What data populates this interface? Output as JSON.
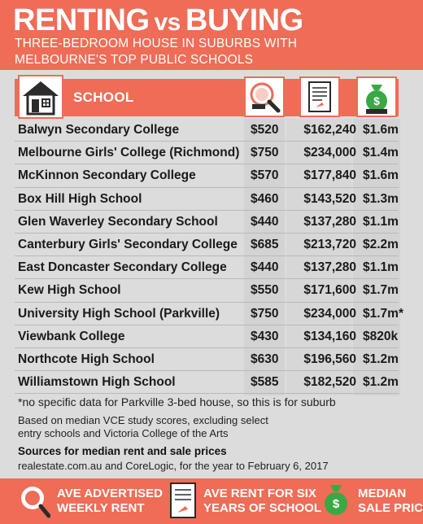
{
  "header": {
    "title_main": "RENTING",
    "title_vs": "vs",
    "title_end": "BUYING",
    "subtitle_line1": "THREE-BEDROOM HOUSE IN SUBURBS WITH",
    "subtitle_line2": "MELBOURNE'S TOP PUBLIC SCHOOLS"
  },
  "table": {
    "school_header": "SCHOOL",
    "header_icons": [
      "house-icon",
      "weekly-rent-icon",
      "document-icon",
      "money-bag-icon"
    ],
    "rows": [
      {
        "school": "Balwyn Secondary College",
        "rent": "$520",
        "total": "$162,240",
        "price": "$1.6m"
      },
      {
        "school": "Melbourne Girls' College (Richmond)",
        "rent": "$750",
        "total": "$234,000",
        "price": "$1.4m"
      },
      {
        "school": "McKinnon Secondary College",
        "rent": "$570",
        "total": "$177,840",
        "price": "$1.6m"
      },
      {
        "school": "Box Hill High School",
        "rent": "$460",
        "total": "$143,520",
        "price": "$1.3m"
      },
      {
        "school": "Glen Waverley Secondary School",
        "rent": "$440",
        "total": "$137,280",
        "price": "$1.1m"
      },
      {
        "school": "Canterbury Girls' Secondary College",
        "rent": "$685",
        "total": "$213,720",
        "price": "$2.2m"
      },
      {
        "school": "East Doncaster Secondary College",
        "rent": "$440",
        "total": "$137,280",
        "price": "$1.1m"
      },
      {
        "school": "Kew High School",
        "rent": "$550",
        "total": "$171,600",
        "price": "$1.7m"
      },
      {
        "school": "University High School (Parkville)",
        "rent": "$750",
        "total": "$234,000",
        "price": "$1.7m*"
      },
      {
        "school": "Viewbank College",
        "rent": "$430",
        "total": "$134,160",
        "price": "$820k"
      },
      {
        "school": "Northcote High School",
        "rent": "$630",
        "total": "$196,560",
        "price": "$1.2m"
      },
      {
        "school": "Williamstown High School",
        "rent": "$585",
        "total": "$182,520",
        "price": "$1.2m"
      }
    ]
  },
  "notes": {
    "footnote": "*no specific data for Parkville 3-bed house, so this is for suburb",
    "basis": "Based on median VCE study scores, excluding select entry schools and Victoria College of the Arts",
    "sources_title": "Sources for median rent and sale prices",
    "sources_body": "realestate.com.au and CoreLogic, for the year to February 6, 2017"
  },
  "legend": {
    "item1_line1": "AVE ADVERTISED",
    "item1_line2": "WEEKLY RENT",
    "item2_line1": "AVE RENT FOR SIX",
    "item2_line2": "YEARS OF SCHOOL",
    "item3_line1": "MEDIAN",
    "item3_line2": "SALE PRICE"
  },
  "colors": {
    "accent": "#ef6c57",
    "background": "#dcdcdc",
    "money_green": "#3aa845"
  }
}
